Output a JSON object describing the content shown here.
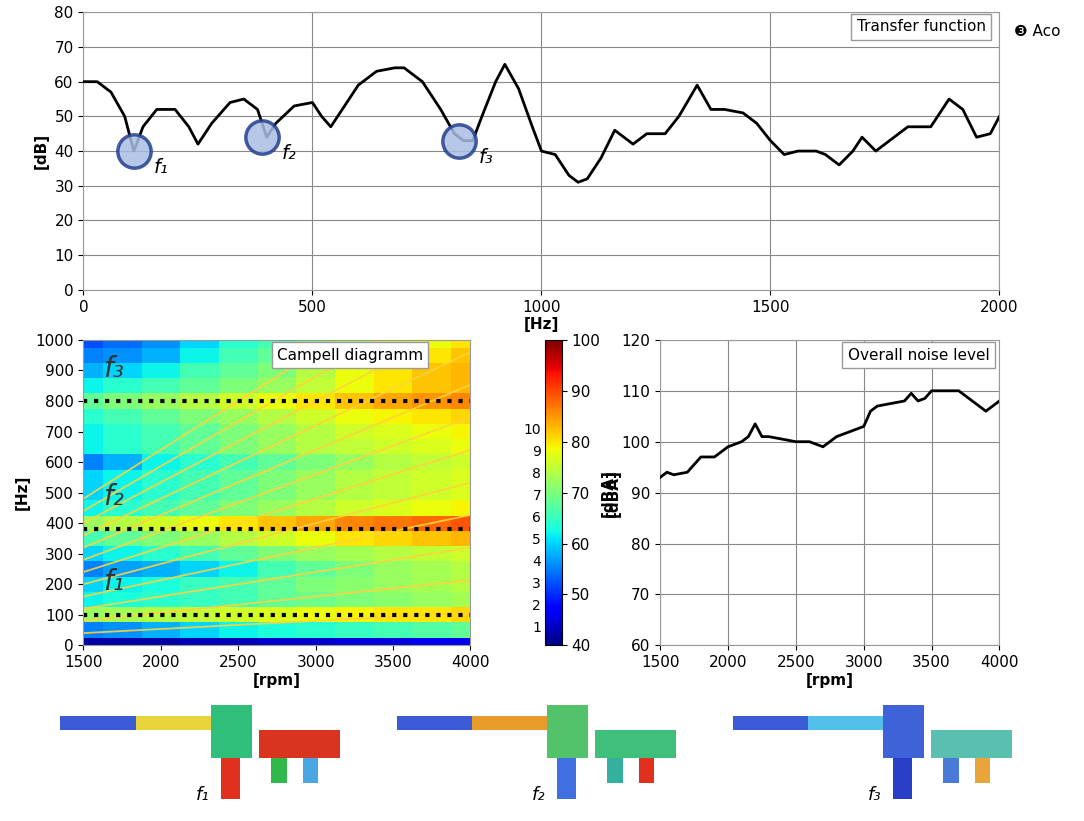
{
  "caption": "❸ Aco",
  "chart_data": [
    {
      "type": "line",
      "title": "Transfer function",
      "x_label": "[Hz]",
      "y_label": "[dB]",
      "x": [
        0,
        30,
        60,
        90,
        110,
        130,
        160,
        200,
        230,
        250,
        280,
        320,
        350,
        380,
        400,
        420,
        460,
        500,
        520,
        540,
        570,
        600,
        640,
        680,
        700,
        740,
        780,
        810,
        830,
        850,
        870,
        900,
        920,
        950,
        980,
        1000,
        1030,
        1060,
        1080,
        1100,
        1130,
        1160,
        1180,
        1200,
        1230,
        1270,
        1300,
        1340,
        1370,
        1400,
        1440,
        1470,
        1500,
        1530,
        1560,
        1600,
        1620,
        1650,
        1680,
        1700,
        1730,
        1760,
        1800,
        1850,
        1890,
        1920,
        1950,
        1980,
        2000
      ],
      "values": [
        60,
        60,
        57,
        50,
        40,
        47,
        52,
        52,
        47,
        42,
        48,
        54,
        55,
        52,
        44,
        48,
        53,
        54,
        50,
        47,
        53,
        59,
        63,
        64,
        64,
        60,
        52,
        45,
        43,
        43,
        50,
        60,
        65,
        58,
        47,
        40,
        39,
        33,
        31,
        32,
        38,
        46,
        44,
        42,
        45,
        45,
        50,
        59,
        52,
        52,
        51,
        48,
        43,
        39,
        40,
        40,
        39,
        36,
        40,
        44,
        40,
        43,
        47,
        47,
        55,
        52,
        44,
        45,
        50
      ],
      "color": "#000000",
      "xlim": [
        0,
        2000
      ],
      "xticks": [
        0,
        500,
        1000,
        1500,
        2000
      ],
      "ylim": [
        0,
        80
      ],
      "yticks": [
        0,
        10,
        20,
        30,
        40,
        50,
        60,
        70,
        80
      ],
      "grid": true,
      "annotations": [
        {
          "x": 110,
          "y": 40,
          "label": "f₁"
        },
        {
          "x": 390,
          "y": 44,
          "label": "f₂"
        },
        {
          "x": 820,
          "y": 43,
          "label": "f₃"
        }
      ]
    },
    {
      "type": "heatmap",
      "title": "Campell diagramm",
      "x_label": "[rpm]",
      "y_label": "[Hz]",
      "x": [
        1500,
        1750,
        2000,
        2250,
        2500,
        2750,
        3000,
        3250,
        3500,
        3750,
        4000
      ],
      "y": [
        0,
        50,
        100,
        150,
        200,
        250,
        300,
        350,
        400,
        450,
        500,
        550,
        600,
        650,
        700,
        750,
        800,
        850,
        900,
        950,
        1000
      ],
      "cells": [
        [
          42,
          42,
          42,
          43,
          43,
          44,
          44,
          45,
          45,
          46,
          46
        ],
        [
          55,
          56,
          58,
          60,
          62,
          63,
          64,
          65,
          66,
          67,
          68
        ],
        [
          72,
          73,
          74,
          75,
          76,
          77,
          78,
          79,
          80,
          80,
          81
        ],
        [
          62,
          63,
          64,
          65,
          66,
          68,
          69,
          70,
          71,
          72,
          73
        ],
        [
          60,
          62,
          63,
          65,
          66,
          68,
          70,
          71,
          72,
          73,
          74
        ],
        [
          55,
          57,
          58,
          60,
          62,
          66,
          68,
          70,
          72,
          73,
          74
        ],
        [
          60,
          62,
          64,
          66,
          68,
          70,
          72,
          73,
          74,
          75,
          76
        ],
        [
          66,
          68,
          70,
          72,
          74,
          76,
          78,
          80,
          81,
          82,
          83
        ],
        [
          72,
          74,
          76,
          78,
          80,
          82,
          84,
          86,
          87,
          88,
          89
        ],
        [
          62,
          64,
          66,
          68,
          70,
          72,
          74,
          76,
          77,
          78,
          79
        ],
        [
          60,
          62,
          64,
          66,
          68,
          70,
          72,
          74,
          75,
          76,
          77
        ],
        [
          60,
          62,
          64,
          66,
          68,
          70,
          72,
          74,
          75,
          76,
          77
        ],
        [
          55,
          58,
          62,
          64,
          66,
          68,
          70,
          72,
          74,
          75,
          76
        ],
        [
          62,
          64,
          66,
          68,
          70,
          72,
          74,
          75,
          76,
          77,
          78
        ],
        [
          62,
          64,
          66,
          68,
          70,
          72,
          74,
          76,
          77,
          78,
          79
        ],
        [
          64,
          66,
          68,
          70,
          72,
          74,
          76,
          78,
          79,
          80,
          81
        ],
        [
          68,
          70,
          72,
          74,
          76,
          78,
          80,
          82,
          84,
          85,
          86
        ],
        [
          62,
          64,
          66,
          68,
          70,
          72,
          75,
          78,
          80,
          82,
          83
        ],
        [
          58,
          60,
          62,
          66,
          68,
          70,
          74,
          78,
          80,
          82,
          83
        ],
        [
          55,
          56,
          58,
          62,
          66,
          68,
          72,
          76,
          78,
          80,
          82
        ],
        [
          52,
          54,
          56,
          60,
          64,
          66,
          70,
          74,
          76,
          78,
          80
        ]
      ],
      "order_lines": {
        "color": "#ffd23c",
        "x": [
          1500,
          4000
        ],
        "values": [
          [
            40,
            107
          ],
          [
            80,
            213
          ],
          [
            120,
            320
          ],
          [
            160,
            427
          ],
          [
            200,
            533
          ],
          [
            240,
            640
          ],
          [
            280,
            747
          ],
          [
            320,
            853
          ],
          [
            360,
            960
          ],
          [
            400,
            1067
          ],
          [
            440,
            1173
          ],
          [
            480,
            1280
          ]
        ]
      },
      "markers": [
        {
          "value": 100,
          "label": "f₁"
        },
        {
          "value": 380,
          "label": "f₂"
        },
        {
          "value": 800,
          "label": "f₃"
        }
      ],
      "marker_color": "#000000",
      "line_style": "dotted",
      "colorbar": {
        "range": [
          40,
          100
        ],
        "ticks": [
          40,
          50,
          60,
          70,
          80,
          90,
          100
        ],
        "label": "[dBA]"
      },
      "order_labels": [
        1,
        2,
        3,
        4,
        5,
        6,
        7,
        8,
        9,
        10
      ],
      "xlim": [
        1500,
        4000
      ],
      "xticks": [
        1500,
        2000,
        2500,
        3000,
        3500,
        4000
      ],
      "ylim": [
        0,
        1000
      ],
      "yticks": [
        0,
        100,
        200,
        300,
        400,
        500,
        600,
        700,
        800,
        900,
        1000
      ],
      "grid": false
    },
    {
      "type": "line",
      "title": "Overall noise level",
      "x_label": "[rpm]",
      "y_label": "[dBA]",
      "x": [
        1500,
        1550,
        1600,
        1700,
        1800,
        1900,
        2000,
        2100,
        2150,
        2200,
        2250,
        2300,
        2400,
        2500,
        2600,
        2700,
        2800,
        2900,
        3000,
        3050,
        3100,
        3200,
        3300,
        3350,
        3400,
        3450,
        3500,
        3600,
        3700,
        3800,
        3900,
        4000
      ],
      "values": [
        93,
        94,
        93.5,
        94,
        97,
        97,
        99,
        100,
        101,
        103.5,
        101,
        101,
        100.5,
        100,
        100,
        99,
        101,
        102,
        103,
        106,
        107,
        107.5,
        108,
        109.5,
        108,
        108.5,
        110,
        110,
        110,
        108,
        106,
        108
      ],
      "color": "#000000",
      "xlim": [
        1500,
        4000
      ],
      "xticks": [
        1500,
        2000,
        2500,
        3000,
        3500,
        4000
      ],
      "ylim": [
        60,
        120
      ],
      "yticks": [
        60,
        70,
        80,
        90,
        100,
        110,
        120
      ],
      "grid": true
    }
  ],
  "mode_shapes": [
    {
      "label": "f₁"
    },
    {
      "label": "f₂"
    },
    {
      "label": "f₃"
    }
  ]
}
